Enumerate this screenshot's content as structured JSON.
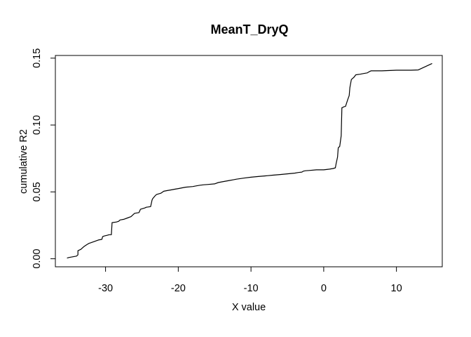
{
  "chart_data": {
    "type": "line",
    "title": "MeanT_DryQ",
    "xlabel": "X value",
    "ylabel": "cumulative R2",
    "xlim": [
      -36.9,
      16.3
    ],
    "ylim": [
      -0.006,
      0.152
    ],
    "xticks": [
      -30,
      -20,
      -10,
      0,
      10
    ],
    "xtick_labels": [
      "-30",
      "-20",
      "-10",
      "0",
      "10"
    ],
    "yticks": [
      0.0,
      0.05,
      0.1,
      0.15
    ],
    "ytick_labels": [
      "0.00",
      "0.05",
      "0.10",
      "0.15"
    ],
    "grid": false,
    "series": [
      {
        "color": "#000000",
        "x": [
          -35.3,
          -35.0,
          -34.0,
          -33.8,
          -33.8,
          -33.4,
          -33.0,
          -32.6,
          -32.3,
          -32.0,
          -31.5,
          -31.0,
          -30.5,
          -30.4,
          -30.2,
          -29.8,
          -29.5,
          -29.2,
          -29.1,
          -28.5,
          -28.2,
          -28.0,
          -27.5,
          -27.0,
          -26.5,
          -26.2,
          -26.0,
          -25.4,
          -25.2,
          -24.6,
          -24.4,
          -23.8,
          -23.6,
          -23.5,
          -23.2,
          -23.0,
          -22.4,
          -22.0,
          -21.5,
          -21.0,
          -20.5,
          -20.0,
          -19.5,
          -19.0,
          -18.0,
          -17.5,
          -17.0,
          -16.5,
          -16.0,
          -15.0,
          -14.5,
          -14.0,
          -13.0,
          -12.5,
          -12.0,
          -11.0,
          -10.0,
          -9.0,
          -8.0,
          -7.0,
          -6.0,
          -5.0,
          -4.0,
          -3.5,
          -3.0,
          -2.8,
          -2.5,
          -2.0,
          -1.0,
          0.0,
          0.8,
          1.3,
          1.6,
          1.7,
          1.9,
          2.0,
          2.2,
          2.4,
          2.5,
          2.6,
          2.7,
          3.0,
          3.3,
          3.5,
          3.6,
          3.8,
          4.0,
          4.2,
          4.4,
          5.0,
          5.5,
          6.0,
          6.3,
          6.5,
          8.0,
          10.0,
          12.0,
          13.0,
          14.9
        ],
        "y": [
          0.0005,
          0.001,
          0.002,
          0.003,
          0.006,
          0.007,
          0.009,
          0.0105,
          0.0115,
          0.012,
          0.013,
          0.014,
          0.0145,
          0.0165,
          0.017,
          0.0175,
          0.018,
          0.018,
          0.027,
          0.0275,
          0.028,
          0.029,
          0.0295,
          0.0305,
          0.0315,
          0.033,
          0.034,
          0.0345,
          0.037,
          0.038,
          0.0385,
          0.039,
          0.044,
          0.045,
          0.047,
          0.048,
          0.049,
          0.0505,
          0.051,
          0.0515,
          0.052,
          0.0525,
          0.053,
          0.0535,
          0.054,
          0.0545,
          0.055,
          0.0553,
          0.0555,
          0.056,
          0.057,
          0.0575,
          0.0585,
          0.059,
          0.0595,
          0.0603,
          0.061,
          0.0615,
          0.062,
          0.0625,
          0.063,
          0.0635,
          0.064,
          0.0645,
          0.0648,
          0.0655,
          0.0658,
          0.066,
          0.0665,
          0.0665,
          0.067,
          0.0675,
          0.068,
          0.071,
          0.076,
          0.083,
          0.084,
          0.092,
          0.113,
          0.113,
          0.1135,
          0.114,
          0.119,
          0.122,
          0.128,
          0.134,
          0.135,
          0.136,
          0.1375,
          0.138,
          0.1385,
          0.139,
          0.14,
          0.1405,
          0.1405,
          0.141,
          0.141,
          0.1412,
          0.146
        ]
      }
    ]
  }
}
